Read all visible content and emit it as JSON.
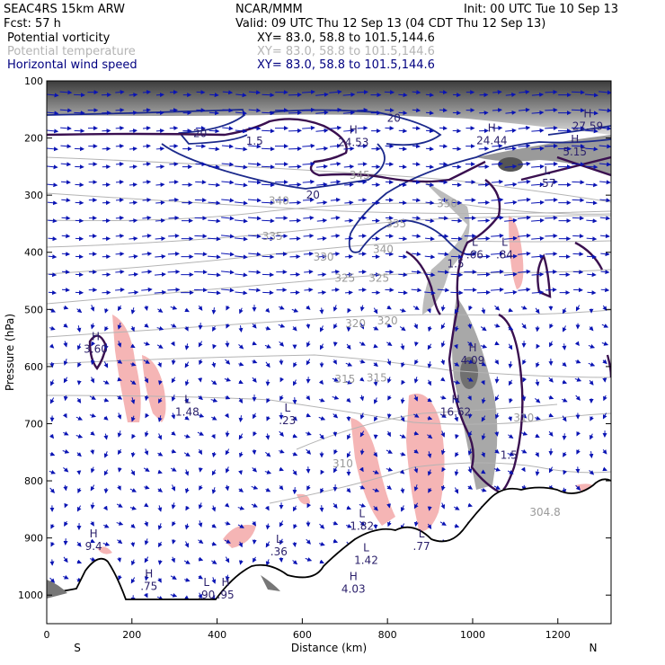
{
  "header": {
    "model": "SEAC4RS 15km ARW",
    "center": "NCAR/MMM",
    "init": "Init: 00 UTC Tue 10 Sep 13",
    "fcst": "Fcst:    57 h",
    "valid": "Valid: 09 UTC Thu 12 Sep 13 (04 CDT Thu 12 Sep 13)",
    "fields": [
      {
        "name": "Potential vorticity",
        "xy": "XY=  83.0, 58.8 to 101.5,144.6",
        "color": "#000000"
      },
      {
        "name": "Potential temperature",
        "xy": "XY=  83.0, 58.8 to 101.5,144.6",
        "color": "#b4b4b4"
      },
      {
        "name": "Horizontal wind speed",
        "xy": "XY=  83.0, 58.8 to 101.5,144.6",
        "color": "#000080"
      }
    ]
  },
  "colors": {
    "pv_contour": "#3a1050",
    "wind_contour": "#1c2a8c",
    "theta": "#b4b4b4",
    "arrows": "#0a14b4",
    "terrain": "#000000",
    "pink": "#f4b0b0",
    "gray_shade": "#8c8c8c"
  },
  "chart_data": {
    "type": "cross-section",
    "xlabel": "Distance (km)",
    "ylabel": "Pressure (hPa)",
    "xlim": [
      0,
      1325
    ],
    "ylim": [
      1050,
      100
    ],
    "x_ticks": [
      "0",
      "200",
      "400",
      "600",
      "800",
      "1000",
      "1200"
    ],
    "y_ticks": [
      "100",
      "200",
      "300",
      "400",
      "500",
      "600",
      "700",
      "800",
      "900",
      "1000"
    ],
    "left_end": "S",
    "right_end": "N",
    "theta_labels": [
      {
        "text": "340",
        "x": 545,
        "p": 310
      },
      {
        "text": "335",
        "x": 530,
        "p": 372
      },
      {
        "text": "330",
        "x": 650,
        "p": 408
      },
      {
        "text": "325",
        "x": 700,
        "p": 445
      },
      {
        "text": "325",
        "x": 780,
        "p": 445
      },
      {
        "text": "320",
        "x": 725,
        "p": 525
      },
      {
        "text": "320",
        "x": 800,
        "p": 520
      },
      {
        "text": "315",
        "x": 700,
        "p": 622
      },
      {
        "text": "315",
        "x": 775,
        "p": 620
      },
      {
        "text": "310",
        "x": 695,
        "p": 770
      },
      {
        "text": "310",
        "x": 1120,
        "p": 690
      },
      {
        "text": "304.8",
        "x": 1170,
        "p": 855
      },
      {
        "text": "335",
        "x": 820,
        "p": 350
      },
      {
        "text": "340",
        "x": 790,
        "p": 395
      },
      {
        "text": "345",
        "x": 735,
        "p": 265
      },
      {
        "text": "350",
        "x": 940,
        "p": 315
      }
    ],
    "pv_labels": [
      {
        "text": "1.5",
        "x": 488,
        "p": 205
      },
      {
        "text": "1.5",
        "x": 960,
        "p": 420
      },
      {
        "text": "1.5",
        "x": 1085,
        "p": 755
      },
      {
        "text": "20",
        "x": 360,
        "p": 192
      },
      {
        "text": "20",
        "x": 625,
        "p": 300
      },
      {
        "text": "20",
        "x": 815,
        "p": 165
      }
    ],
    "extrema": [
      {
        "type": "H",
        "value": "3.60",
        "x": 115,
        "p": 560
      },
      {
        "type": "L",
        "value": "1.48",
        "x": 330,
        "p": 670
      },
      {
        "type": "L",
        "value": ".23",
        "x": 565,
        "p": 685
      },
      {
        "type": "H",
        "value": "4.09",
        "x": 1000,
        "p": 580
      },
      {
        "type": "H",
        "value": "16.62",
        "x": 960,
        "p": 670
      },
      {
        "type": "L",
        "value": ".66",
        "x": 1005,
        "p": 395
      },
      {
        "type": "L",
        "value": ".84",
        "x": 1075,
        "p": 395
      },
      {
        "type": "L",
        "value": ".57",
        "x": 1175,
        "p": 270
      },
      {
        "type": "H",
        "value": "24.44",
        "x": 1045,
        "p": 195
      },
      {
        "type": "H",
        "value": "27.59",
        "x": 1270,
        "p": 170
      },
      {
        "type": "H",
        "value": "5.15",
        "x": 1240,
        "p": 215
      },
      {
        "type": "H",
        "value": "24.53",
        "x": 720,
        "p": 198
      },
      {
        "type": "H",
        "value": "9.4",
        "x": 110,
        "p": 905
      },
      {
        "type": "H",
        "value": ".75",
        "x": 240,
        "p": 975
      },
      {
        "type": "L",
        "value": ".90",
        "x": 375,
        "p": 990
      },
      {
        "type": "H",
        "value": ".95",
        "x": 420,
        "p": 990
      },
      {
        "type": "L",
        "value": ".36",
        "x": 545,
        "p": 915
      },
      {
        "type": "L",
        "value": "1.82",
        "x": 740,
        "p": 870
      },
      {
        "type": "L",
        "value": "1.42",
        "x": 750,
        "p": 930
      },
      {
        "type": "H",
        "value": "4.03",
        "x": 720,
        "p": 980
      },
      {
        "type": "L",
        "value": ".77",
        "x": 880,
        "p": 905
      }
    ]
  }
}
